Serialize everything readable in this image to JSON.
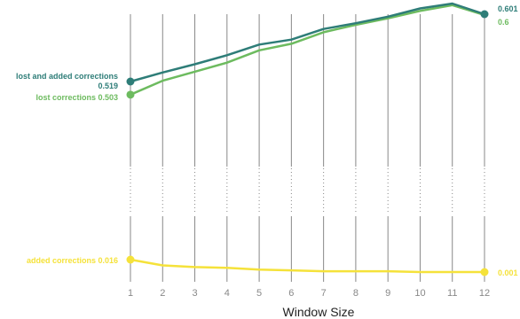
{
  "chart_data": {
    "type": "line",
    "xlabel": "Window Size",
    "ylabel": "",
    "x": [
      1,
      2,
      3,
      4,
      5,
      6,
      7,
      8,
      9,
      10,
      11,
      12
    ],
    "series": [
      {
        "name": "lost and added corrections",
        "color": "#2e7d78",
        "values": [
          0.519,
          0.53,
          0.54,
          0.551,
          0.564,
          0.57,
          0.583,
          0.59,
          0.598,
          0.608,
          0.614,
          0.601
        ],
        "start_label": "0.519",
        "end_label": "0.601"
      },
      {
        "name": "lost corrections",
        "color": "#6dbb5f",
        "values": [
          0.503,
          0.52,
          0.531,
          0.542,
          0.557,
          0.565,
          0.579,
          0.588,
          0.596,
          0.605,
          0.612,
          0.6
        ],
        "start_label": "0.503",
        "end_label": "0.6"
      },
      {
        "name": "added corrections",
        "color": "#f5e23a",
        "values": [
          0.016,
          0.009,
          0.007,
          0.006,
          0.004,
          0.003,
          0.002,
          0.002,
          0.002,
          0.001,
          0.001,
          0.001
        ],
        "start_label": "0.016",
        "end_label": "0.001"
      }
    ],
    "axis_break": true,
    "grid": "vertical"
  },
  "labels": {
    "lost_and_added": "lost and added corrections",
    "lost_and_added_value": "0.519",
    "lost": "lost corrections 0.503",
    "added": "added corrections 0.016",
    "end_top": "0.601",
    "end_mid": "0.6",
    "end_bottom": "0.001"
  },
  "colors": {
    "dark_green": "#2e7d78",
    "light_green": "#6dbb5f",
    "yellow": "#f5e23a",
    "grid": "#888888"
  }
}
